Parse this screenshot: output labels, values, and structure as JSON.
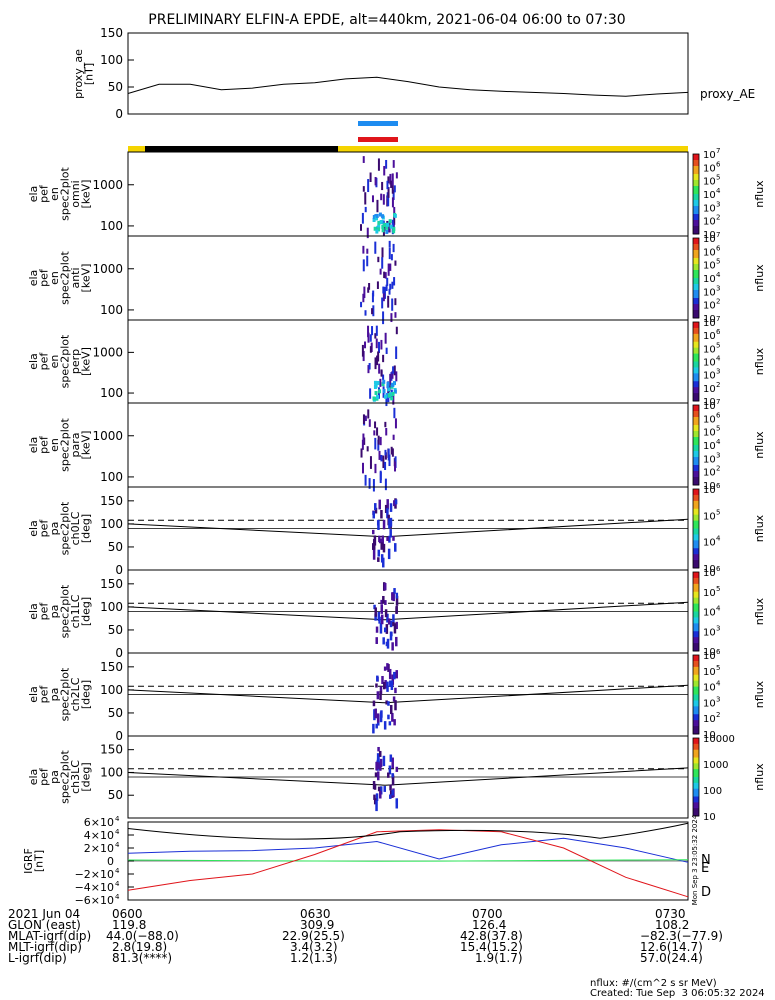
{
  "title": "PRELIMINARY ELFIN-A EPDE, alt=440km, 2021-06-04 06:00 to 07:30",
  "colors": {
    "blue_bar": "#1e8cf0",
    "red_bar": "#e0151b",
    "sunlit": "#f5d400",
    "eclipse": "#000000"
  },
  "panels": {
    "proxy": {
      "ylabel": [
        "proxy_ae",
        "[nT]"
      ],
      "ticks": [
        "150",
        "100",
        "50",
        "0"
      ],
      "legend": "proxy_AE"
    },
    "spec": [
      {
        "ylabel": [
          "ela",
          "pef",
          "en",
          "spec2plot",
          "omni",
          "[keV]"
        ],
        "ticks": [
          "1000",
          "100"
        ],
        "cb_ticks": [
          "10",
          "2",
          "3",
          "4",
          "5",
          "6",
          "7"
        ],
        "cb_label": "nflux"
      },
      {
        "ylabel": [
          "ela",
          "pef",
          "en",
          "spec2plot",
          "anti",
          "[keV]"
        ],
        "ticks": [
          "1000",
          "100"
        ],
        "cb_ticks": [
          "10",
          "2",
          "3",
          "4",
          "5",
          "6",
          "7"
        ],
        "cb_label": "nflux"
      },
      {
        "ylabel": [
          "ela",
          "pef",
          "en",
          "spec2plot",
          "perp",
          "[keV]"
        ],
        "ticks": [
          "1000",
          "100"
        ],
        "cb_ticks": [
          "10",
          "2",
          "3",
          "4",
          "5",
          "6",
          "7"
        ],
        "cb_label": "nflux"
      },
      {
        "ylabel": [
          "ela",
          "pef",
          "en",
          "spec2plot",
          "para",
          "[keV]"
        ],
        "ticks": [
          "1000",
          "100"
        ],
        "cb_ticks": [
          "10",
          "2",
          "3",
          "4",
          "5",
          "6",
          "7"
        ],
        "cb_label": "nflux"
      }
    ],
    "pa": [
      {
        "ylabel": [
          "ela",
          "pef",
          "pa",
          "spec2plot",
          "ch0LC",
          "[deg]"
        ],
        "ticks": [
          "150",
          "100",
          "50",
          "0"
        ],
        "cb_ticks": [
          "10",
          "4",
          "5",
          "6"
        ],
        "cb_label": "nflux"
      },
      {
        "ylabel": [
          "ela",
          "pef",
          "pa",
          "spec2plot",
          "ch1LC",
          "[deg]"
        ],
        "ticks": [
          "150",
          "100",
          "50",
          "0"
        ],
        "cb_ticks": [
          "10",
          "3",
          "4",
          "5",
          "6"
        ],
        "cb_label": "nflux"
      },
      {
        "ylabel": [
          "ela",
          "pef",
          "pa",
          "spec2plot",
          "ch2LC",
          "[deg]"
        ],
        "ticks": [
          "150",
          "100",
          "50",
          "0"
        ],
        "cb_ticks": [
          "10",
          "2",
          "3",
          "4",
          "5",
          "6"
        ],
        "cb_label": "nflux"
      },
      {
        "ylabel": [
          "ela",
          "pef",
          "pa",
          "spec2plot",
          "ch3LC",
          "[deg]"
        ],
        "ticks": [
          "150",
          "100",
          "50"
        ],
        "cb_ticks": [
          "10",
          "100",
          "1000",
          "10000"
        ],
        "cb_label": "nflux"
      }
    ],
    "igrf": {
      "ylabel": [
        "IGRF",
        "[nT]"
      ],
      "ticks": [
        "6×10",
        "4×10",
        "2×10",
        "0",
        "−2×10",
        "−4×10",
        "−6×10"
      ],
      "exp": "4",
      "labels": [
        "N",
        "E",
        "D"
      ],
      "side_text": "Mon Sep  3 23:05:32 2024"
    }
  },
  "footer": {
    "row_labels": [
      "2021 Jun 04",
      "GLON (east)",
      "MLAT-igrf(dip)",
      "MLT-igrf(dip)",
      "L-igrf(dip)"
    ],
    "times": [
      "0600",
      "0630",
      "0700",
      "0730"
    ],
    "columns": [
      [
        "119.8",
        "44.0(−88.0)",
        "2.8(19.8)",
        "81.3(****)"
      ],
      [
        "309.9",
        "22.9(25.5)",
        "3.4(3.2)",
        "1.2(1.3)"
      ],
      [
        "126.4",
        "42.8(37.8)",
        "15.4(15.2)",
        "1.9(1.7)"
      ],
      [
        "108.2",
        "−82.3(−77.9)",
        "12.6(14.7)",
        "57.0(24.4)"
      ]
    ],
    "units": "nflux: #/(cm^2 s sr MeV)",
    "created": "Created: Tue Sep  3 06:05:32 2024"
  },
  "chart_data": {
    "type": "line",
    "x_range": [
      "06:00",
      "07:30"
    ],
    "proxy_ae": {
      "x": [
        "06:00",
        "06:05",
        "06:10",
        "06:15",
        "06:20",
        "06:25",
        "06:30",
        "06:35",
        "06:40",
        "06:45",
        "06:50",
        "06:55",
        "07:00",
        "07:05",
        "07:10",
        "07:15",
        "07:20",
        "07:25",
        "07:30"
      ],
      "values": [
        38,
        55,
        55,
        45,
        48,
        55,
        58,
        65,
        68,
        60,
        50,
        45,
        42,
        40,
        38,
        35,
        33,
        37,
        40
      ],
      "ylim": [
        0,
        150
      ]
    },
    "igrf": {
      "x_min": [
        0,
        10,
        20,
        30,
        40,
        50,
        60,
        70,
        80,
        90
      ],
      "series": [
        {
          "name": "N",
          "values": [
            12000,
            15000,
            16000,
            20000,
            30000,
            3000,
            25000,
            35000,
            20000,
            -2000
          ]
        },
        {
          "name": "E",
          "values": [
            1500,
            1000,
            500,
            0,
            -500,
            -200,
            300,
            1000,
            1500,
            2000
          ]
        },
        {
          "name": "D",
          "values": [
            -45000,
            -30000,
            -20000,
            10000,
            45000,
            48000,
            45000,
            20000,
            -25000,
            -55000
          ]
        }
      ],
      "ylim": [
        -60000,
        60000
      ]
    }
  }
}
